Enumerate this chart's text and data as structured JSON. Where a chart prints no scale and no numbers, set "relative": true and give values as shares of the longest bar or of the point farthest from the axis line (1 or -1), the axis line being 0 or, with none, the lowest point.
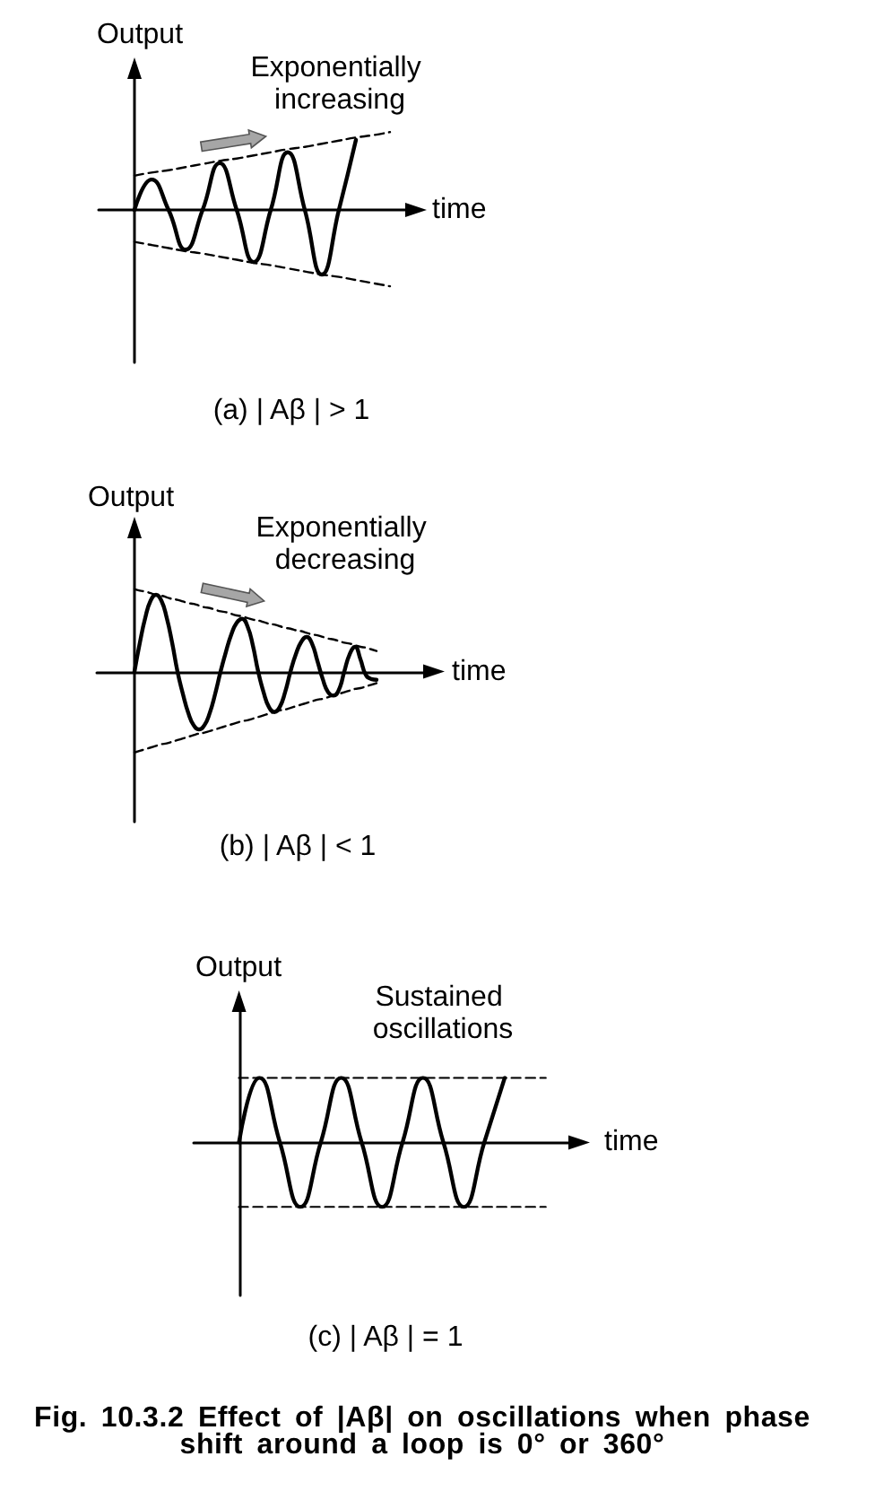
{
  "chart_data": [
    {
      "type": "line",
      "relative": true,
      "xlabel": "time",
      "ylabel": "Output",
      "annotations": [
        "Exponentially increasing",
        "(a) | Aβ | > 1"
      ],
      "marker": "none",
      "categories": [
        null,
        null,
        null,
        null,
        null,
        null,
        null,
        null,
        null,
        null,
        null,
        null,
        null,
        null,
        null,
        null
      ],
      "series": [
        {
          "color": "#000000",
          "values": [
            0,
            0.39,
            0,
            -0.51,
            0,
            0.6,
            0,
            -0.67,
            0,
            0.74,
            0,
            -0.83,
            0,
            0.9,
            null,
            null
          ]
        },
        {
          "color": "#000000",
          "line_style": "dashed",
          "values": [
            0.44,
            0.48,
            0.51,
            0.55,
            0.59,
            0.63,
            0.66,
            0.7,
            0.74,
            0.78,
            0.81,
            0.85,
            0.89,
            0.93,
            0.96,
            1
          ]
        },
        {
          "color": "#000000",
          "line_style": "dashed",
          "values": [
            -0.41,
            -0.45,
            -0.49,
            -0.53,
            -0.56,
            -0.6,
            -0.64,
            -0.68,
            -0.71,
            -0.75,
            -0.79,
            -0.83,
            -0.86,
            -0.9,
            -0.94,
            -0.98
          ]
        }
      ]
    },
    {
      "type": "line",
      "relative": true,
      "xlabel": "time",
      "ylabel": "Output",
      "annotations": [
        "Exponentially decreasing",
        "(b) | Aβ | < 1"
      ],
      "marker": "none",
      "categories": [
        null,
        null,
        null,
        null,
        null,
        null,
        null,
        null,
        null,
        null,
        null,
        null,
        null,
        null,
        null,
        null,
        null,
        null,
        null,
        null,
        null,
        null,
        null,
        null,
        null,
        null,
        null,
        null,
        null,
        null,
        null,
        null,
        null,
        null,
        null,
        null,
        null,
        null,
        null,
        null,
        null,
        null,
        null,
        null,
        null,
        null
      ],
      "series": [
        {
          "color": "#000000",
          "values": [
            0,
            0.35,
            0.65,
            0.86,
            0.93,
            0.86,
            0.65,
            0.35,
            0,
            -0.27,
            -0.5,
            -0.65,
            -0.7,
            -0.65,
            -0.5,
            -0.27,
            0,
            0.24,
            0.45,
            0.59,
            0.64,
            0.55,
            0.32,
            0,
            -0.25,
            -0.43,
            -0.49,
            -0.43,
            -0.25,
            0,
            0.21,
            0.36,
            0.42,
            0.34,
            0.13,
            -0.09,
            -0.25,
            -0.29,
            -0.22,
            0,
            0.21,
            0.3,
            0.15,
            -0.04,
            -0.09,
            -0.1
          ]
        },
        {
          "color": "#000000",
          "line_style": "dashed",
          "values": [
            1,
            0.98,
            0.97,
            0.95,
            0.93,
            0.92,
            0.9,
            0.88,
            0.87,
            0.85,
            0.83,
            0.82,
            0.8,
            0.78,
            0.77,
            0.75,
            0.73,
            0.72,
            0.7,
            0.68,
            0.67,
            0.65,
            0.63,
            0.62,
            0.6,
            0.58,
            0.57,
            0.55,
            0.53,
            0.52,
            0.5,
            0.49,
            0.47,
            0.45,
            0.44,
            0.42,
            0.4,
            0.39,
            0.37,
            0.35,
            0.34,
            0.32,
            0.3,
            0.29,
            0.27,
            0.25
          ]
        },
        {
          "color": "#000000",
          "line_style": "dashed",
          "values": [
            -0.98,
            -0.96,
            -0.94,
            -0.92,
            -0.9,
            -0.88,
            -0.87,
            -0.85,
            -0.83,
            -0.81,
            -0.79,
            -0.77,
            -0.75,
            -0.74,
            -0.72,
            -0.7,
            -0.68,
            -0.66,
            -0.64,
            -0.62,
            -0.6,
            -0.59,
            -0.57,
            -0.55,
            -0.53,
            -0.51,
            -0.49,
            -0.47,
            -0.46,
            -0.44,
            -0.42,
            -0.4,
            -0.38,
            -0.36,
            -0.34,
            -0.33,
            -0.31,
            -0.29,
            -0.27,
            -0.25,
            -0.23,
            -0.21,
            -0.2,
            -0.18,
            -0.16,
            -0.14
          ]
        }
      ]
    },
    {
      "type": "line",
      "relative": true,
      "xlabel": "time",
      "ylabel": "Output",
      "annotations": [
        "Sustained oscillations",
        "(c) | Aβ | = 1",
        "Fig. 10.3.2 Effect of |Aβ| on oscillations when phase shift around a loop is 0° or 360°"
      ],
      "marker": "none",
      "categories": [
        null,
        null,
        null,
        null,
        null,
        null,
        null,
        null,
        null,
        null,
        null,
        null,
        null,
        null,
        null,
        null
      ],
      "series": [
        {
          "color": "#000000",
          "values": [
            0,
            1,
            0,
            -1,
            0,
            1,
            0,
            -1,
            0,
            1,
            0,
            -1,
            0,
            1,
            null,
            null
          ]
        },
        {
          "color": "#000000",
          "line_style": "dashed",
          "values": [
            1,
            1,
            1,
            1,
            1,
            1,
            1,
            1,
            1,
            1,
            1,
            1,
            1,
            1,
            1,
            1
          ]
        },
        {
          "color": "#000000",
          "line_style": "dashed",
          "values": [
            -1,
            -1,
            -1,
            -1,
            -1,
            -1,
            -1,
            -1,
            -1,
            -1,
            -1,
            -1,
            -1,
            -1,
            -1,
            -1
          ]
        }
      ]
    }
  ]
}
